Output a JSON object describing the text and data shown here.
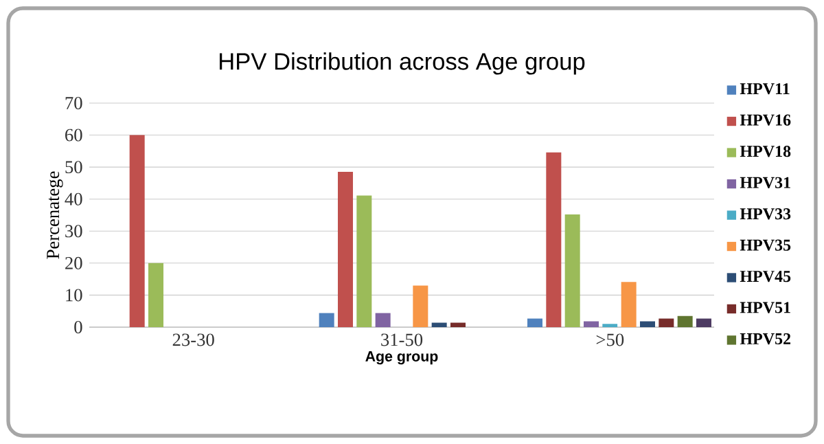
{
  "chart_data": {
    "type": "bar",
    "title": "HPV Distribution across Age group",
    "xlabel": "Age group",
    "ylabel": "Percenatege",
    "categories": [
      "23-30",
      "31-50",
      ">50"
    ],
    "series": [
      {
        "name": "HPV11",
        "color": "#4f81bd",
        "values": [
          0,
          4.4,
          2.7
        ]
      },
      {
        "name": "HPV16",
        "color": "#c0504d",
        "values": [
          60,
          48.5,
          54.6
        ]
      },
      {
        "name": "HPV18",
        "color": "#9bbb59",
        "values": [
          20,
          41.1,
          35.2
        ]
      },
      {
        "name": "HPV31",
        "color": "#8064a2",
        "values": [
          0,
          4.4,
          1.8
        ]
      },
      {
        "name": "HPV33",
        "color": "#4bacc6",
        "values": [
          0,
          0,
          1.0
        ]
      },
      {
        "name": "HPV35",
        "color": "#f79646",
        "values": [
          0,
          13.0,
          14.1
        ]
      },
      {
        "name": "HPV45",
        "color": "#2c4d75",
        "values": [
          0,
          1.4,
          1.8
        ]
      },
      {
        "name": "HPV51",
        "color": "#772c2a",
        "values": [
          0,
          1.4,
          2.7
        ]
      },
      {
        "name": "HPV52",
        "color": "#5f7530",
        "values": [
          0,
          0,
          3.5
        ]
      },
      {
        "color": "#4d3b62",
        "values": [
          0,
          0,
          2.7
        ]
      }
    ],
    "ylim": [
      0,
      70
    ],
    "yticks": [
      0,
      10,
      20,
      30,
      40,
      50,
      60,
      70
    ],
    "grid": "y",
    "legend": "right"
  }
}
